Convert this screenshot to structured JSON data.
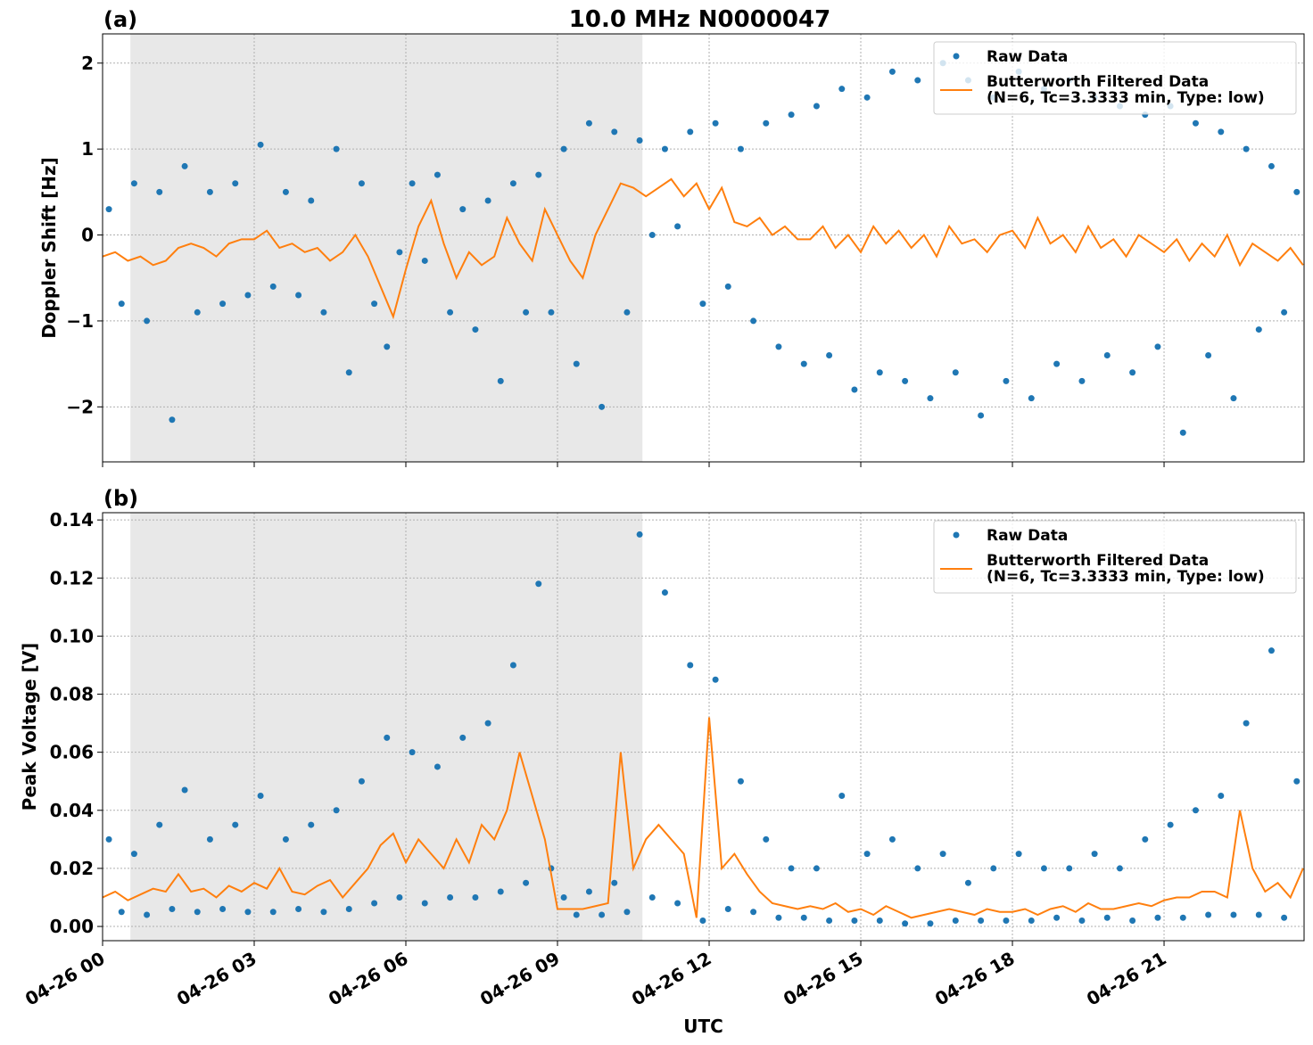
{
  "chart_data": [
    {
      "type": "line",
      "title": "10.0 MHz N0000047",
      "panel_label": "(a)",
      "ylabel": "Doppler Shift [Hz]",
      "xlim": [
        0,
        23.77
      ],
      "xticks": [
        0,
        3,
        6,
        9,
        12,
        15,
        18,
        21
      ],
      "ylim": [
        -2.64,
        2.34
      ],
      "yticks": [
        {
          "value": -2,
          "label": "−2"
        },
        {
          "value": -1,
          "label": "−1"
        },
        0,
        1,
        2
      ],
      "grid": true,
      "legend": "upper right",
      "shade": [
        0.55,
        10.68
      ],
      "series": [
        {
          "name": "Raw Data",
          "type": "scatter",
          "color": "#1f77b4",
          "x": [
            0.125,
            0.375,
            0.625,
            0.875,
            1.125,
            1.375,
            1.625,
            1.875,
            2.125,
            2.375,
            2.625,
            2.875,
            3.125,
            3.375,
            3.625,
            3.875,
            4.125,
            4.375,
            4.625,
            4.875,
            5.125,
            5.375,
            5.625,
            5.875,
            6.125,
            6.375,
            6.625,
            6.875,
            7.125,
            7.375,
            7.625,
            7.875,
            8.125,
            8.375,
            8.625,
            8.875,
            9.125,
            9.375,
            9.625,
            9.875,
            10.125,
            10.375,
            10.625,
            10.875,
            11.125,
            11.375,
            11.625,
            11.875,
            12.125,
            12.375,
            12.625,
            12.875,
            13.125,
            13.375,
            13.625,
            13.875,
            14.125,
            14.375,
            14.625,
            14.875,
            15.125,
            15.375,
            15.625,
            15.875,
            16.125,
            16.375,
            16.625,
            16.875,
            17.125,
            17.375,
            17.625,
            17.875,
            18.125,
            18.375,
            18.625,
            18.875,
            19.125,
            19.375,
            19.625,
            19.875,
            20.125,
            20.375,
            20.625,
            20.875,
            21.125,
            21.375,
            21.625,
            21.875,
            22.125,
            22.375,
            22.625,
            22.875,
            23.125,
            23.375,
            23.625
          ],
          "values": [
            0.3,
            -0.8,
            0.6,
            -1.0,
            0.5,
            -2.15,
            0.8,
            -0.9,
            0.5,
            -0.8,
            0.6,
            -0.7,
            1.05,
            -0.6,
            0.5,
            -0.7,
            0.4,
            -0.9,
            1.0,
            -1.6,
            0.6,
            -0.8,
            -1.3,
            -0.2,
            0.6,
            -0.3,
            0.7,
            -0.9,
            0.3,
            -1.1,
            0.4,
            -1.7,
            0.6,
            -0.9,
            0.7,
            -0.9,
            1.0,
            -1.5,
            1.3,
            -2.0,
            1.2,
            -0.9,
            1.1,
            0.0,
            1.0,
            0.1,
            1.2,
            -0.8,
            1.3,
            -0.6,
            1.0,
            -1.0,
            1.3,
            -1.3,
            1.4,
            -1.5,
            1.5,
            -1.4,
            1.7,
            -1.8,
            1.6,
            -1.6,
            1.9,
            -1.7,
            1.8,
            -1.9,
            2.0,
            -1.6,
            1.8,
            -2.1,
            1.6,
            -1.7,
            1.9,
            -1.9,
            1.7,
            -1.5,
            1.8,
            -1.7,
            1.6,
            -1.4,
            1.5,
            -1.6,
            1.4,
            -1.3,
            1.5,
            -2.3,
            1.3,
            -1.4,
            1.2,
            -1.9,
            1.0,
            -1.1,
            0.8,
            -0.9,
            0.5
          ]
        },
        {
          "name": "Butterworth Filtered Data\n(N=6, Tc=3.3333 min, Type: low)",
          "type": "line",
          "color": "#ff7f0e",
          "x": [
            0,
            0.25,
            0.5,
            0.75,
            1,
            1.25,
            1.5,
            1.75,
            2,
            2.25,
            2.5,
            2.75,
            3,
            3.25,
            3.5,
            3.75,
            4,
            4.25,
            4.5,
            4.75,
            5,
            5.25,
            5.5,
            5.75,
            6,
            6.25,
            6.5,
            6.75,
            7,
            7.25,
            7.5,
            7.75,
            8,
            8.25,
            8.5,
            8.75,
            9,
            9.25,
            9.5,
            9.75,
            10,
            10.25,
            10.5,
            10.75,
            11,
            11.25,
            11.5,
            11.75,
            12,
            12.25,
            12.5,
            12.75,
            13,
            13.25,
            13.5,
            13.75,
            14,
            14.25,
            14.5,
            14.75,
            15,
            15.25,
            15.5,
            15.75,
            16,
            16.25,
            16.5,
            16.75,
            17,
            17.25,
            17.5,
            17.75,
            18,
            18.25,
            18.5,
            18.75,
            19,
            19.25,
            19.5,
            19.75,
            20,
            20.25,
            20.5,
            20.75,
            21,
            21.25,
            21.5,
            21.75,
            22,
            22.25,
            22.5,
            22.75,
            23,
            23.25,
            23.5,
            23.75
          ],
          "values": [
            -0.25,
            -0.2,
            -0.3,
            -0.25,
            -0.35,
            -0.3,
            -0.15,
            -0.1,
            -0.15,
            -0.25,
            -0.1,
            -0.05,
            -0.05,
            0.05,
            -0.15,
            -0.1,
            -0.2,
            -0.15,
            -0.3,
            -0.2,
            0.0,
            -0.25,
            -0.6,
            -0.95,
            -0.4,
            0.1,
            0.4,
            -0.1,
            -0.5,
            -0.2,
            -0.35,
            -0.25,
            0.2,
            -0.1,
            -0.3,
            0.3,
            0.0,
            -0.3,
            -0.5,
            0.0,
            0.3,
            0.6,
            0.55,
            0.45,
            0.55,
            0.65,
            0.45,
            0.6,
            0.3,
            0.55,
            0.15,
            0.1,
            0.2,
            0.0,
            0.1,
            -0.05,
            -0.05,
            0.1,
            -0.15,
            0.0,
            -0.2,
            0.1,
            -0.1,
            0.05,
            -0.15,
            0.0,
            -0.25,
            0.1,
            -0.1,
            -0.05,
            -0.2,
            0.0,
            0.05,
            -0.15,
            0.2,
            -0.1,
            0.0,
            -0.2,
            0.1,
            -0.15,
            -0.05,
            -0.25,
            0.0,
            -0.1,
            -0.2,
            -0.05,
            -0.3,
            -0.1,
            -0.25,
            0.0,
            -0.35,
            -0.1,
            -0.2,
            -0.3,
            -0.15,
            -0.35
          ]
        }
      ]
    },
    {
      "type": "line",
      "panel_label": "(b)",
      "ylabel": "Peak Voltage [V]",
      "xlabel": "UTC",
      "xlim": [
        0,
        23.77
      ],
      "xticks": [
        {
          "value": 0,
          "label": "04-26 00"
        },
        {
          "value": 3,
          "label": "04-26 03"
        },
        {
          "value": 6,
          "label": "04-26 06"
        },
        {
          "value": 9,
          "label": "04-26 09"
        },
        {
          "value": 12,
          "label": "04-26 12"
        },
        {
          "value": 15,
          "label": "04-26 15"
        },
        {
          "value": 18,
          "label": "04-26 18"
        },
        {
          "value": 21,
          "label": "04-26 21"
        }
      ],
      "ylim": [
        -0.0049,
        0.1425
      ],
      "yticks": [
        {
          "value": 0,
          "label": "0.00"
        },
        0.02,
        0.04,
        0.06,
        0.08,
        {
          "value": 0.1,
          "label": "0.10"
        },
        0.12,
        0.14
      ],
      "grid": true,
      "legend": "upper right",
      "shade": [
        0.55,
        10.68
      ],
      "series": [
        {
          "name": "Raw Data",
          "type": "scatter",
          "color": "#1f77b4",
          "x": [
            0.125,
            0.375,
            0.625,
            0.875,
            1.125,
            1.375,
            1.625,
            1.875,
            2.125,
            2.375,
            2.625,
            2.875,
            3.125,
            3.375,
            3.625,
            3.875,
            4.125,
            4.375,
            4.625,
            4.875,
            5.125,
            5.375,
            5.625,
            5.875,
            6.125,
            6.375,
            6.625,
            6.875,
            7.125,
            7.375,
            7.625,
            7.875,
            8.125,
            8.375,
            8.625,
            8.875,
            9.125,
            9.375,
            9.625,
            9.875,
            10.125,
            10.375,
            10.625,
            10.875,
            11.125,
            11.375,
            11.625,
            11.875,
            12.125,
            12.375,
            12.625,
            12.875,
            13.125,
            13.375,
            13.625,
            13.875,
            14.125,
            14.375,
            14.625,
            14.875,
            15.125,
            15.375,
            15.625,
            15.875,
            16.125,
            16.375,
            16.625,
            16.875,
            17.125,
            17.375,
            17.625,
            17.875,
            18.125,
            18.375,
            18.625,
            18.875,
            19.125,
            19.375,
            19.625,
            19.875,
            20.125,
            20.375,
            20.625,
            20.875,
            21.125,
            21.375,
            21.625,
            21.875,
            22.125,
            22.375,
            22.625,
            22.875,
            23.125,
            23.375,
            23.625
          ],
          "values": [
            0.03,
            0.005,
            0.025,
            0.004,
            0.035,
            0.006,
            0.047,
            0.005,
            0.03,
            0.006,
            0.035,
            0.005,
            0.045,
            0.005,
            0.03,
            0.006,
            0.035,
            0.005,
            0.04,
            0.006,
            0.05,
            0.008,
            0.065,
            0.01,
            0.06,
            0.008,
            0.055,
            0.01,
            0.065,
            0.01,
            0.07,
            0.012,
            0.09,
            0.015,
            0.118,
            0.02,
            0.01,
            0.004,
            0.012,
            0.004,
            0.015,
            0.005,
            0.135,
            0.01,
            0.115,
            0.008,
            0.09,
            0.002,
            0.085,
            0.006,
            0.05,
            0.005,
            0.03,
            0.003,
            0.02,
            0.003,
            0.02,
            0.002,
            0.045,
            0.002,
            0.025,
            0.002,
            0.03,
            0.001,
            0.02,
            0.001,
            0.025,
            0.002,
            0.015,
            0.002,
            0.02,
            0.002,
            0.025,
            0.002,
            0.02,
            0.003,
            0.02,
            0.002,
            0.025,
            0.003,
            0.02,
            0.002,
            0.03,
            0.003,
            0.035,
            0.003,
            0.04,
            0.004,
            0.045,
            0.004,
            0.07,
            0.004,
            0.095,
            0.003,
            0.05
          ]
        },
        {
          "name": "Butterworth Filtered Data\n(N=6, Tc=3.3333 min, Type: low)",
          "type": "line",
          "color": "#ff7f0e",
          "x": [
            0,
            0.25,
            0.5,
            0.75,
            1,
            1.25,
            1.5,
            1.75,
            2,
            2.25,
            2.5,
            2.75,
            3,
            3.25,
            3.5,
            3.75,
            4,
            4.25,
            4.5,
            4.75,
            5,
            5.25,
            5.5,
            5.75,
            6,
            6.25,
            6.5,
            6.75,
            7,
            7.25,
            7.5,
            7.75,
            8,
            8.25,
            8.5,
            8.75,
            9,
            9.25,
            9.5,
            9.75,
            10,
            10.25,
            10.5,
            10.75,
            11,
            11.25,
            11.5,
            11.75,
            12,
            12.25,
            12.5,
            12.75,
            13,
            13.25,
            13.5,
            13.75,
            14,
            14.25,
            14.5,
            14.75,
            15,
            15.25,
            15.5,
            15.75,
            16,
            16.25,
            16.5,
            16.75,
            17,
            17.25,
            17.5,
            17.75,
            18,
            18.25,
            18.5,
            18.75,
            19,
            19.25,
            19.5,
            19.75,
            20,
            20.25,
            20.5,
            20.75,
            21,
            21.25,
            21.5,
            21.75,
            22,
            22.25,
            22.5,
            22.75,
            23,
            23.25,
            23.5,
            23.75
          ],
          "values": [
            0.01,
            0.012,
            0.009,
            0.011,
            0.013,
            0.012,
            0.018,
            0.012,
            0.013,
            0.01,
            0.014,
            0.012,
            0.015,
            0.013,
            0.02,
            0.012,
            0.011,
            0.014,
            0.016,
            0.01,
            0.015,
            0.02,
            0.028,
            0.032,
            0.022,
            0.03,
            0.025,
            0.02,
            0.03,
            0.022,
            0.035,
            0.03,
            0.04,
            0.06,
            0.045,
            0.03,
            0.006,
            0.006,
            0.006,
            0.007,
            0.008,
            0.06,
            0.02,
            0.03,
            0.035,
            0.03,
            0.025,
            0.003,
            0.072,
            0.02,
            0.025,
            0.018,
            0.012,
            0.008,
            0.007,
            0.006,
            0.007,
            0.006,
            0.008,
            0.005,
            0.006,
            0.004,
            0.007,
            0.005,
            0.003,
            0.004,
            0.005,
            0.006,
            0.005,
            0.004,
            0.006,
            0.005,
            0.005,
            0.006,
            0.004,
            0.006,
            0.007,
            0.005,
            0.008,
            0.006,
            0.006,
            0.007,
            0.008,
            0.007,
            0.009,
            0.01,
            0.01,
            0.012,
            0.012,
            0.01,
            0.04,
            0.02,
            0.012,
            0.015,
            0.01,
            0.02
          ]
        }
      ]
    }
  ]
}
